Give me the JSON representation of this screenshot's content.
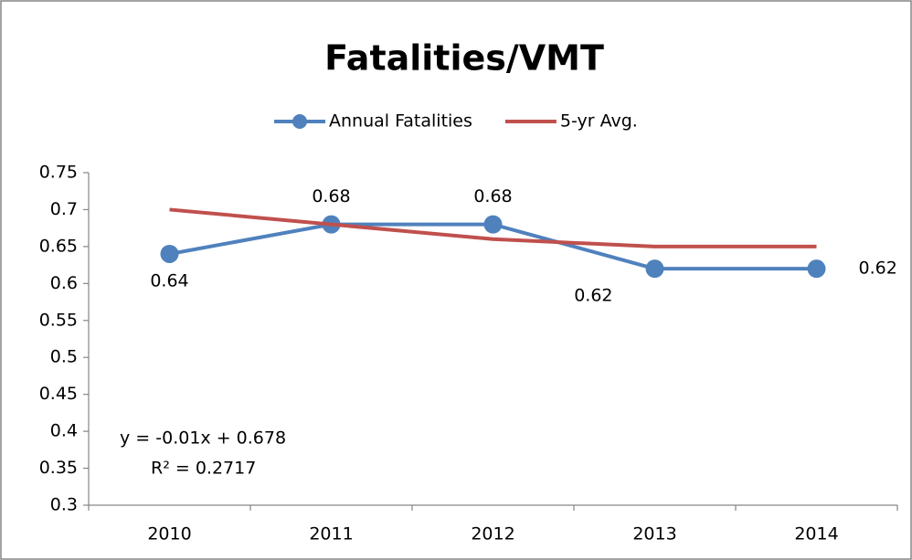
{
  "chart_data": {
    "type": "line",
    "title": "Fatalities/VMT",
    "categories": [
      "2010",
      "2011",
      "2012",
      "2013",
      "2014"
    ],
    "series": [
      {
        "name": "Annual Fatalities",
        "color": "#4f81bd",
        "values": [
          0.64,
          0.68,
          0.68,
          0.62,
          0.62
        ],
        "markers": true,
        "data_labels": true
      },
      {
        "name": "5-yr Avg.",
        "color": "#c0504d",
        "values": [
          0.7,
          0.68,
          0.66,
          0.65,
          0.65
        ],
        "markers": false,
        "data_labels": false
      }
    ],
    "ylim": [
      0.3,
      0.75
    ],
    "yticks": [
      0.3,
      0.35,
      0.4,
      0.45,
      0.5,
      0.55,
      0.6,
      0.65,
      0.7,
      0.75
    ],
    "grid": false,
    "legend": "top",
    "annotations": [
      "y = -0.01x + 0.678",
      "R² = 0.2717"
    ]
  }
}
